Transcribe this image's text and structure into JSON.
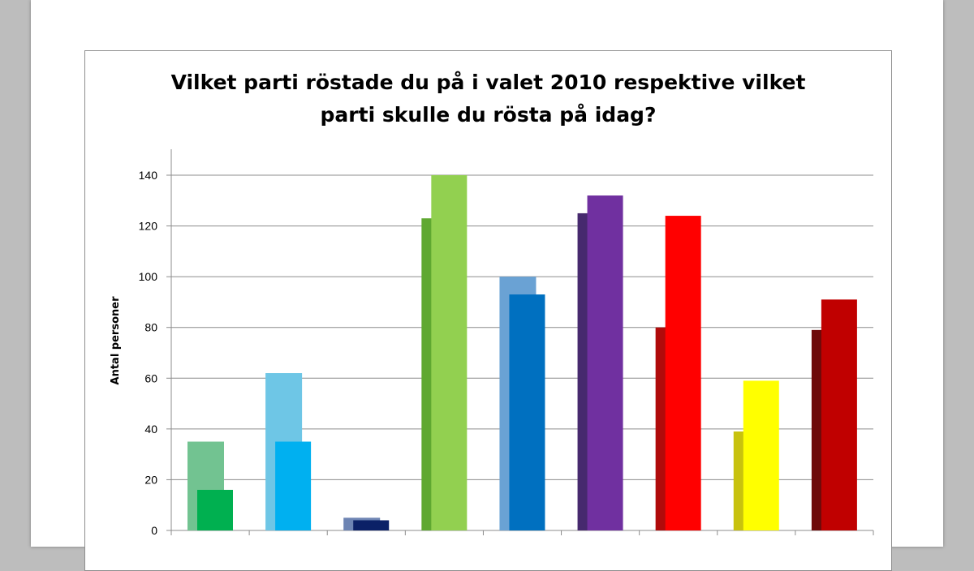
{
  "chart_data": {
    "type": "bar",
    "title": [
      "Vilket parti röstade du på i valet 2010 respektive vilket",
      "parti skulle du rösta på idag?"
    ],
    "ylabel": "Antal personer",
    "xlabel": "",
    "ylim": [
      0,
      140
    ],
    "yticks": [
      0,
      20,
      40,
      60,
      80,
      100,
      120,
      140
    ],
    "grid": true,
    "series": [
      {
        "role": "valet-2010",
        "values": [
          35,
          62,
          5,
          123,
          100,
          125,
          80,
          39,
          79
        ]
      },
      {
        "role": "idag",
        "values": [
          16,
          35,
          4,
          140,
          93,
          132,
          124,
          59,
          91
        ]
      }
    ],
    "colors_2010": [
      "#72c391",
      "#6ec6e6",
      "#6d84b3",
      "#5fa831",
      "#6aa2d4",
      "#46296e",
      "#b00b0b",
      "#c8c20e",
      "#6e0a0a"
    ],
    "colors_idag": [
      "#00b050",
      "#00b0f0",
      "#0b2167",
      "#92d050",
      "#0070c0",
      "#7030a0",
      "#ff0000",
      "#ffff00",
      "#c00000"
    ]
  }
}
